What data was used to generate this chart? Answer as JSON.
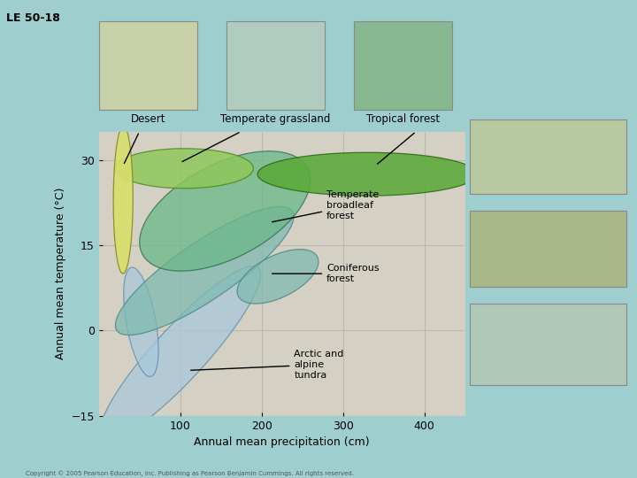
{
  "title": "LE 50-18",
  "xlabel": "Annual mean precipitation (cm)",
  "ylabel": "Annual mean temperature (°C)",
  "xlim": [
    0,
    450
  ],
  "ylim": [
    -15,
    35
  ],
  "xticks": [
    100,
    200,
    300,
    400
  ],
  "yticks": [
    -15,
    0,
    15,
    30
  ],
  "background_outer": "#9ecece",
  "background_plot": "#d4d0c4",
  "grid_color": "#bcb8ac",
  "biomes": {
    "desert": {
      "color": "#d8df6a",
      "edge": "#888820",
      "alpha": 0.9
    },
    "tropical_forest": {
      "color": "#5aaa3a",
      "edge": "#2a6a10",
      "alpha": 0.88
    },
    "temperate_broadleaf": {
      "color": "#6ab888",
      "edge": "#2a6848",
      "alpha": 0.75
    },
    "coniferous": {
      "color": "#80bab0",
      "edge": "#408080",
      "alpha": 0.75
    },
    "tundra": {
      "color": "#a8c8dc",
      "edge": "#5888a8",
      "alpha": 0.75
    },
    "temperate_grassland": {
      "color": "#8ec858",
      "edge": "#4a8818",
      "alpha": 0.82
    }
  },
  "copyright": "Copyright © 2005 Pearson Education, Inc. Publishing as Pearson Benjamin Cummings. All rights reserved."
}
